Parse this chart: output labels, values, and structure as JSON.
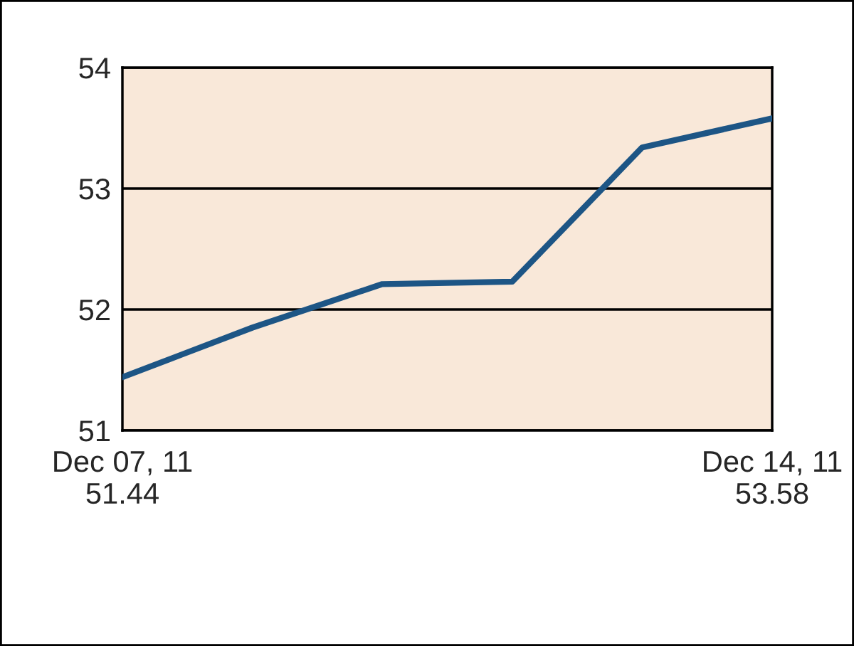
{
  "chart_data": {
    "type": "line",
    "categories": [
      "Dec 07, 11\n51.44",
      null,
      null,
      null,
      null,
      "Dec 14, 11\n53.58"
    ],
    "series": [
      {
        "color": "#1d5585",
        "values": [
          51.44,
          51.85,
          52.21,
          52.23,
          53.34,
          53.58
        ]
      }
    ],
    "ylim": [
      51,
      54
    ],
    "yticks": [
      51,
      52,
      53,
      54
    ],
    "grid": "y",
    "marker": "none",
    "line_style": "solid"
  }
}
